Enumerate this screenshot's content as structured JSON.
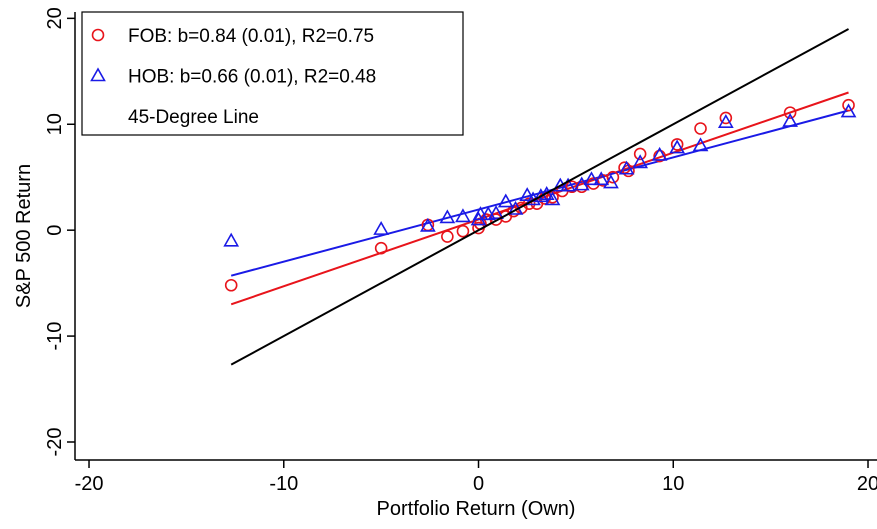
{
  "chart_data": {
    "type": "scatter",
    "x_label": "Portfolio Return (Own)",
    "y_label": "S&P 500 Return",
    "xlim": [
      -20.72,
      20.5
    ],
    "ylim": [
      -21.7,
      20.6
    ],
    "xticks": [
      -20,
      -10,
      0,
      10,
      20
    ],
    "yticks": [
      -20,
      -10,
      0,
      10,
      20
    ],
    "legend": "top-left",
    "series": [
      {
        "name": "FOB: b=0.84 (0.01), R2=0.75",
        "color": "#e8141b",
        "marker": "circle",
        "x": [
          -12.7,
          -5,
          -2.6,
          -1.6,
          -0.8,
          0,
          0.1,
          0.4,
          0.9,
          1.4,
          1.8,
          2.2,
          2.6,
          3,
          3.4,
          3.8,
          4.3,
          4.8,
          5.3,
          5.9,
          6.4,
          6.9,
          7.5,
          7.7,
          8.3,
          9.3,
          10.2,
          11.4,
          12.7,
          16,
          19
        ],
        "values": [
          -5.2,
          -1.7,
          0.5,
          -0.6,
          -0.1,
          0.2,
          0.6,
          1.0,
          1.0,
          1.3,
          1.8,
          2.1,
          2.5,
          2.5,
          3.0,
          3.1,
          3.7,
          4.1,
          4.1,
          4.4,
          4.7,
          5.0,
          5.9,
          5.6,
          7.2,
          7.0,
          8.1,
          9.6,
          10.6,
          11.1,
          11.8
        ]
      },
      {
        "name": "HOB: b=0.66 (0.01), R2=0.48",
        "color": "#1a1ae6",
        "marker": "triangle",
        "x": [
          -12.7,
          -5,
          -2.6,
          -1.6,
          -0.8,
          0,
          0.1,
          0.5,
          0.9,
          1.4,
          1.9,
          2.5,
          2.8,
          3.2,
          3.5,
          3.8,
          4.2,
          4.6,
          5.3,
          5.8,
          6.3,
          6.8,
          7.6,
          8.3,
          9.3,
          10.2,
          11.4,
          12.7,
          16,
          19
        ],
        "values": [
          -1.0,
          0.1,
          0.4,
          1.2,
          1.3,
          1.0,
          1.5,
          1.5,
          1.6,
          2.7,
          2.0,
          3.3,
          2.9,
          3.2,
          3.4,
          2.9,
          4.2,
          4.2,
          4.3,
          4.8,
          4.8,
          4.5,
          5.8,
          6.4,
          7.1,
          7.8,
          8.0,
          10.2,
          10.3,
          11.2
        ]
      },
      {
        "name": "45-Degree Line",
        "color": "#000000",
        "marker": "line",
        "x": [
          -12.7,
          19
        ],
        "values": [
          -12.7,
          19
        ]
      }
    ],
    "fit_lines": [
      {
        "color": "#e8141b",
        "x": [
          -12.7,
          19
        ],
        "values": [
          -7.0,
          13.0
        ]
      },
      {
        "color": "#1a1ae6",
        "x": [
          -12.7,
          19
        ],
        "values": [
          -4.3,
          11.3
        ]
      }
    ]
  }
}
